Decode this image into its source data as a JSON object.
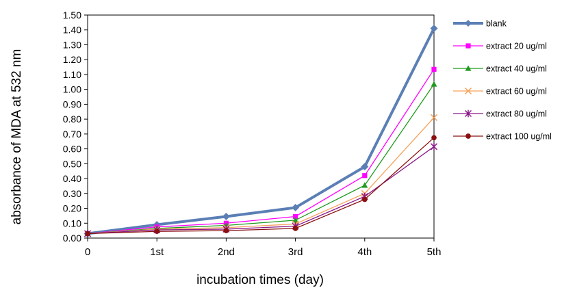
{
  "chart_data": {
    "type": "line",
    "xlabel": "incubation times (day)",
    "ylabel": "absorbance of MDA at 532 nm",
    "categories": [
      "0",
      "1st",
      "2nd",
      "3rd",
      "4th",
      "5th"
    ],
    "ylim": [
      0,
      1.5
    ],
    "ystep": 0.1,
    "y_ticks": [
      "0.00",
      "0.10",
      "0.20",
      "0.30",
      "0.40",
      "0.50",
      "0.60",
      "0.70",
      "0.80",
      "0.90",
      "1.00",
      "1.10",
      "1.20",
      "1.30",
      "1.40",
      "1.50"
    ],
    "grid": false,
    "legend_position": "right",
    "series": [
      {
        "name": "blank",
        "color": "#5b7fb5",
        "marker": "diamond",
        "values": [
          0.03,
          0.09,
          0.145,
          0.205,
          0.48,
          1.41
        ]
      },
      {
        "name": "extract 20 ug/ml",
        "color": "#ff00ff",
        "marker": "square",
        "values": [
          0.03,
          0.075,
          0.1,
          0.145,
          0.42,
          1.135
        ]
      },
      {
        "name": "extract 40 ug/ml",
        "color": "#1f9a1f",
        "marker": "triangle",
        "values": [
          0.03,
          0.065,
          0.085,
          0.12,
          0.355,
          1.035
        ]
      },
      {
        "name": "extract 60 ug/ml",
        "color": "#f7a05a",
        "marker": "x",
        "values": [
          0.03,
          0.06,
          0.07,
          0.095,
          0.3,
          0.81
        ]
      },
      {
        "name": "extract 80 ug/ml",
        "color": "#8a1a8a",
        "marker": "star",
        "values": [
          0.03,
          0.055,
          0.06,
          0.08,
          0.28,
          0.615
        ]
      },
      {
        "name": "extract 100 ug/ml",
        "color": "#8b1010",
        "marker": "circle",
        "values": [
          0.03,
          0.045,
          0.05,
          0.065,
          0.26,
          0.675
        ]
      }
    ]
  }
}
